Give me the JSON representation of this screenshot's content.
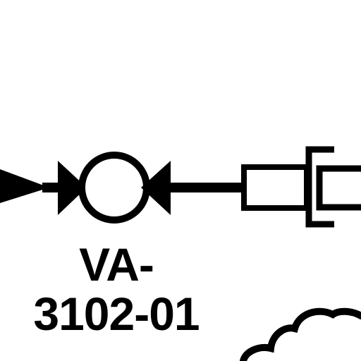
{
  "diagram": {
    "valve_tag": {
      "line1": "VA-",
      "line2": "3102-01"
    },
    "symbols": {
      "inline_symbol": "ball-valve-icon",
      "incoming": "arrowhead-icon",
      "right_component": "coupling-icon",
      "lower_right": "cloud-shape"
    },
    "colors": {
      "ink": "#000000",
      "background": "#ffffff"
    }
  }
}
